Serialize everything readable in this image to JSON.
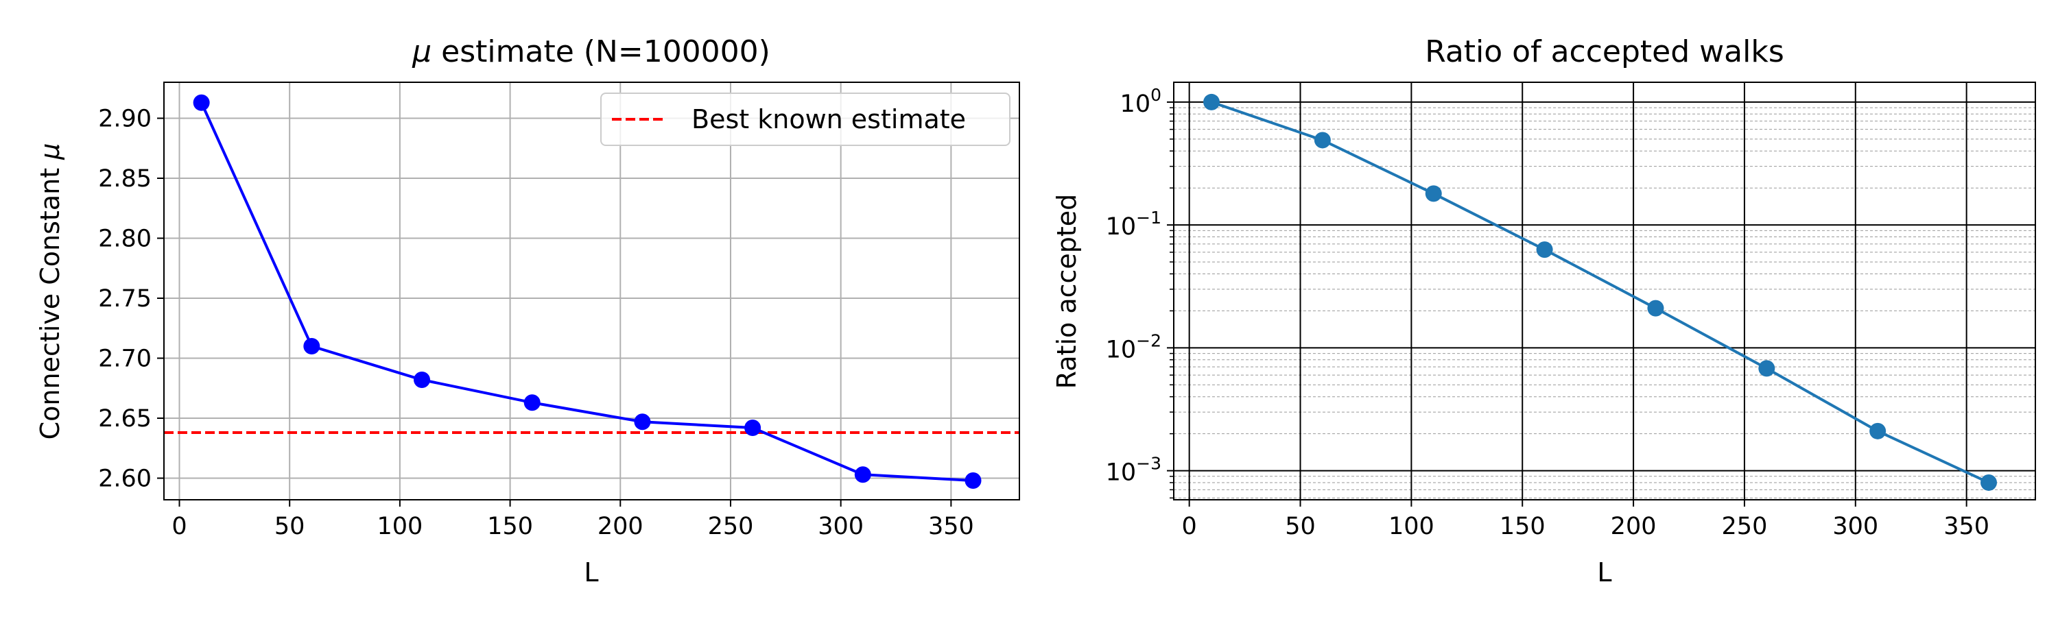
{
  "chart_data": [
    {
      "type": "line",
      "title": "μ estimate (N=100000)",
      "title_mu": "μ",
      "title_rest": " estimate (N=100000)",
      "xlabel": "L",
      "ylabel": "Connective Constant μ",
      "ylabel_text": "Connective Constant ",
      "ylabel_mu": "μ",
      "xlim": [
        -7,
        381
      ],
      "ylim": [
        2.582,
        2.93
      ],
      "x_ticks": [
        0,
        50,
        100,
        150,
        200,
        250,
        300,
        350
      ],
      "x_tick_labels": [
        "0",
        "50",
        "100",
        "150",
        "200",
        "250",
        "300",
        "350"
      ],
      "y_ticks": [
        2.6,
        2.65,
        2.7,
        2.75,
        2.8,
        2.85,
        2.9
      ],
      "y_tick_labels": [
        "2.60",
        "2.65",
        "2.70",
        "2.75",
        "2.80",
        "2.85",
        "2.90"
      ],
      "grid": true,
      "series": [
        {
          "x": [
            10,
            60,
            110,
            160,
            210,
            260,
            310,
            360
          ],
          "y": [
            2.913,
            2.71,
            2.682,
            2.663,
            2.647,
            2.642,
            2.603,
            2.598
          ],
          "color": "#0000ff",
          "marker": "circle"
        }
      ],
      "reference_line": {
        "y": 2.638,
        "name": "Best known estimate",
        "color": "#ff0000",
        "style": "dashed"
      },
      "legend": {
        "position": "top-right",
        "entries": [
          "Best known estimate"
        ]
      }
    },
    {
      "type": "line",
      "title": "Ratio of accepted walks",
      "xlabel": "L",
      "ylabel": "Ratio accepted",
      "yscale": "log",
      "xlim": [
        -7,
        381
      ],
      "ylim": [
        0.00058,
        1.45
      ],
      "x_ticks": [
        0,
        50,
        100,
        150,
        200,
        250,
        300,
        350
      ],
      "x_tick_labels": [
        "0",
        "50",
        "100",
        "150",
        "200",
        "250",
        "300",
        "350"
      ],
      "y_ticks": [
        0.001,
        0.01,
        0.1,
        1
      ],
      "y_tick_labels": [
        {
          "base": "10",
          "exp": "−3"
        },
        {
          "base": "10",
          "exp": "−2"
        },
        {
          "base": "10",
          "exp": "−1"
        },
        {
          "base": "10",
          "exp": "0"
        }
      ],
      "grid": true,
      "minor_grid": true,
      "series": [
        {
          "x": [
            10,
            60,
            110,
            160,
            210,
            260,
            310,
            360
          ],
          "y": [
            1.0,
            0.49,
            0.18,
            0.063,
            0.021,
            0.0068,
            0.0021,
            0.0008
          ],
          "color": "#1f77b4",
          "marker": "circle"
        }
      ]
    }
  ]
}
